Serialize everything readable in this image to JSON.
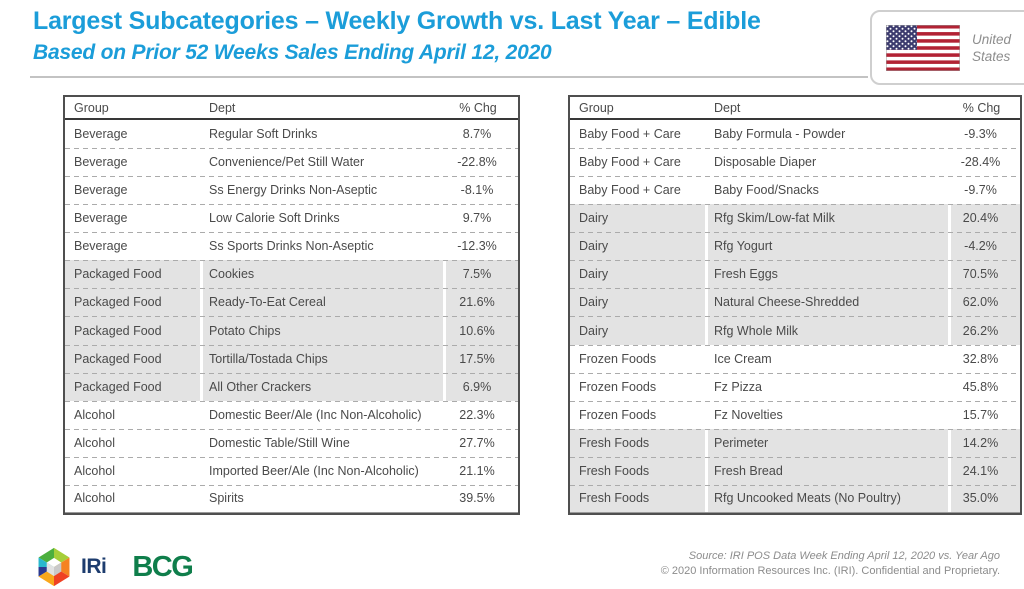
{
  "header": {
    "title": "Largest Subcategories – Weekly Growth vs. Last Year – Edible",
    "subtitle": "Based on Prior 52 Weeks Sales Ending April 12, 2020",
    "country": {
      "line1": "United",
      "line2": "States",
      "flag_icon": "us-flag-icon"
    }
  },
  "columns": [
    "Group",
    "Dept",
    "% Chg"
  ],
  "tables": [
    {
      "position": "left",
      "rows": [
        {
          "group": "Beverage",
          "dept": "Regular Soft Drinks",
          "chg": "8.7%",
          "shaded": false
        },
        {
          "group": "Beverage",
          "dept": "Convenience/Pet Still Water",
          "chg": "-22.8%",
          "shaded": false
        },
        {
          "group": "Beverage",
          "dept": "Ss Energy Drinks Non-Aseptic",
          "chg": "-8.1%",
          "shaded": false
        },
        {
          "group": "Beverage",
          "dept": "Low Calorie Soft Drinks",
          "chg": "9.7%",
          "shaded": false
        },
        {
          "group": "Beverage",
          "dept": "Ss Sports Drinks Non-Aseptic",
          "chg": "-12.3%",
          "shaded": false
        },
        {
          "group": "Packaged Food",
          "dept": "Cookies",
          "chg": "7.5%",
          "shaded": true
        },
        {
          "group": "Packaged Food",
          "dept": "Ready-To-Eat Cereal",
          "chg": "21.6%",
          "shaded": true
        },
        {
          "group": "Packaged Food",
          "dept": "Potato Chips",
          "chg": "10.6%",
          "shaded": true
        },
        {
          "group": "Packaged Food",
          "dept": "Tortilla/Tostada Chips",
          "chg": "17.5%",
          "shaded": true
        },
        {
          "group": "Packaged Food",
          "dept": "All Other Crackers",
          "chg": "6.9%",
          "shaded": true
        },
        {
          "group": "Alcohol",
          "dept": "Domestic Beer/Ale (Inc Non-Alcoholic)",
          "chg": "22.3%",
          "shaded": false
        },
        {
          "group": "Alcohol",
          "dept": "Domestic Table/Still Wine",
          "chg": "27.7%",
          "shaded": false
        },
        {
          "group": "Alcohol",
          "dept": "Imported Beer/Ale (Inc Non-Alcoholic)",
          "chg": "21.1%",
          "shaded": false
        },
        {
          "group": "Alcohol",
          "dept": "Spirits",
          "chg": "39.5%",
          "shaded": false
        }
      ]
    },
    {
      "position": "right",
      "rows": [
        {
          "group": "Baby Food + Care",
          "dept": "Baby Formula - Powder",
          "chg": "-9.3%",
          "shaded": false
        },
        {
          "group": "Baby Food + Care",
          "dept": "Disposable Diaper",
          "chg": "-28.4%",
          "shaded": false
        },
        {
          "group": "Baby Food + Care",
          "dept": "Baby Food/Snacks",
          "chg": "-9.7%",
          "shaded": false
        },
        {
          "group": "Dairy",
          "dept": "Rfg Skim/Low-fat Milk",
          "chg": "20.4%",
          "shaded": true
        },
        {
          "group": "Dairy",
          "dept": "Rfg Yogurt",
          "chg": "-4.2%",
          "shaded": true
        },
        {
          "group": "Dairy",
          "dept": "Fresh Eggs",
          "chg": "70.5%",
          "shaded": true
        },
        {
          "group": "Dairy",
          "dept": "Natural Cheese-Shredded",
          "chg": "62.0%",
          "shaded": true
        },
        {
          "group": "Dairy",
          "dept": "Rfg Whole Milk",
          "chg": "26.2%",
          "shaded": true
        },
        {
          "group": "Frozen Foods",
          "dept": "Ice Cream",
          "chg": "32.8%",
          "shaded": false
        },
        {
          "group": "Frozen Foods",
          "dept": "Fz Pizza",
          "chg": "45.8%",
          "shaded": false
        },
        {
          "group": "Frozen Foods",
          "dept": "Fz Novelties",
          "chg": "15.7%",
          "shaded": false
        },
        {
          "group": "Fresh Foods",
          "dept": "Perimeter",
          "chg": "14.2%",
          "shaded": true
        },
        {
          "group": "Fresh Foods",
          "dept": "Fresh Bread",
          "chg": "24.1%",
          "shaded": true
        },
        {
          "group": "Fresh Foods",
          "dept": "Rfg Uncooked Meats (No Poultry)",
          "chg": "35.0%",
          "shaded": true
        }
      ]
    }
  ],
  "footer": {
    "iri_logo_text": "IRi",
    "bcg_logo_text": "BCG",
    "source_line1": "Source: IRI POS Data Week Ending April 12, 2020 vs. Year Ago",
    "source_line2": "© 2020 Information Resources Inc. (IRI). Confidential and Proprietary."
  },
  "colors": {
    "accent_blue": "#1b9dd9",
    "row_shading": "#e3e3e3",
    "iri_navy": "#1d3c6e",
    "bcg_green": "#0f7e4b",
    "flag_red": "#b22234",
    "flag_blue": "#3c3b6e"
  }
}
